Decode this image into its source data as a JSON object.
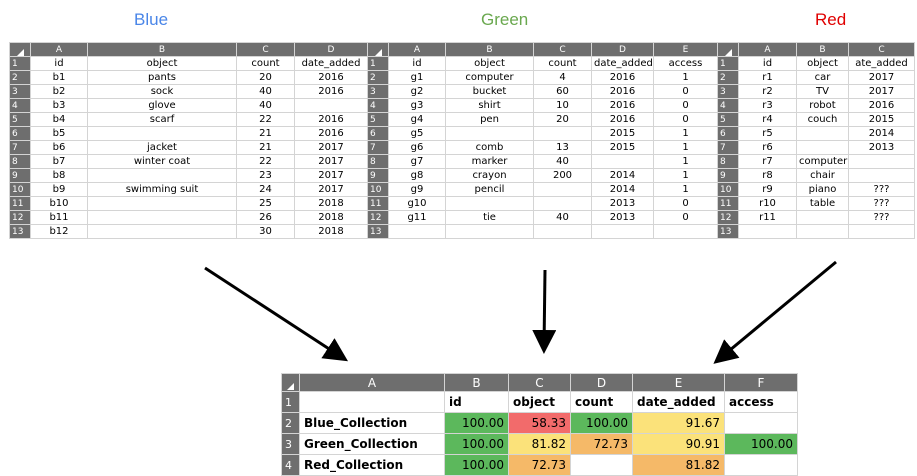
{
  "titles": {
    "blue": "Blue",
    "green": "Green",
    "red": "Red"
  },
  "title_colors": {
    "blue": "#4a86e8",
    "green": "#6aa84f",
    "red": "#e00000"
  },
  "blue": {
    "cols": [
      "A",
      "B",
      "C",
      "D"
    ],
    "rows": [
      [
        "id",
        "object",
        "count",
        "date_added"
      ],
      [
        "b1",
        "pants",
        "20",
        "2016"
      ],
      [
        "b2",
        "sock",
        "40",
        "2016"
      ],
      [
        "b3",
        "glove",
        "40",
        ""
      ],
      [
        "b4",
        "scarf",
        "22",
        "2016"
      ],
      [
        "b5",
        "",
        "21",
        "2016"
      ],
      [
        "b6",
        "jacket",
        "21",
        "2017"
      ],
      [
        "b7",
        "winter coat",
        "22",
        "2017"
      ],
      [
        "b8",
        "",
        "23",
        "2017"
      ],
      [
        "b9",
        "swimming suit",
        "24",
        "2017"
      ],
      [
        "b10",
        "",
        "25",
        "2018"
      ],
      [
        "b11",
        "",
        "26",
        "2018"
      ],
      [
        "b12",
        "",
        "30",
        "2018"
      ]
    ]
  },
  "green": {
    "cols": [
      "A",
      "B",
      "C",
      "D",
      "E"
    ],
    "rows": [
      [
        "id",
        "object",
        "count",
        "date_added",
        "access"
      ],
      [
        "g1",
        "computer",
        "4",
        "2016",
        "1"
      ],
      [
        "g2",
        "bucket",
        "60",
        "2016",
        "0"
      ],
      [
        "g3",
        "shirt",
        "10",
        "2016",
        "0"
      ],
      [
        "g4",
        "pen",
        "20",
        "2016",
        "0"
      ],
      [
        "g5",
        "",
        "",
        "2015",
        "1"
      ],
      [
        "g6",
        "comb",
        "13",
        "2015",
        "1"
      ],
      [
        "g7",
        "marker",
        "40",
        "",
        "1"
      ],
      [
        "g8",
        "crayon",
        "200",
        "2014",
        "1"
      ],
      [
        "g9",
        "pencil",
        "",
        "2014",
        "1"
      ],
      [
        "g10",
        "",
        "",
        "2013",
        "0"
      ],
      [
        "g11",
        "tie",
        "40",
        "2013",
        "0"
      ],
      [
        "",
        "",
        "",
        "",
        ""
      ]
    ]
  },
  "red": {
    "cols": [
      "A",
      "B",
      "C"
    ],
    "rows": [
      [
        "id",
        "object",
        "ate_added"
      ],
      [
        "r1",
        "car",
        "2017"
      ],
      [
        "r2",
        "TV",
        "2017"
      ],
      [
        "r3",
        "robot",
        "2016"
      ],
      [
        "r4",
        "couch",
        "2015"
      ],
      [
        "r5",
        "",
        "2014"
      ],
      [
        "r6",
        "",
        "2013"
      ],
      [
        "r7",
        "computer",
        ""
      ],
      [
        "r8",
        "chair",
        ""
      ],
      [
        "r9",
        "piano",
        "???"
      ],
      [
        "r10",
        "table",
        "???"
      ],
      [
        "r11",
        "",
        "???"
      ],
      [
        "",
        "",
        ""
      ]
    ]
  },
  "result": {
    "cols": [
      "A",
      "B",
      "C",
      "D",
      "E",
      "F"
    ],
    "header": [
      "",
      "id",
      "object",
      "count",
      "date_added",
      "access"
    ],
    "rows": [
      {
        "label": "Blue_Collection",
        "values": [
          "100.00",
          "58.33",
          "100.00",
          "91.67",
          ""
        ],
        "colors": [
          "#5cb85c",
          "#f26b6b",
          "#5cb85c",
          "#fbe27a",
          ""
        ]
      },
      {
        "label": "Green_Collection",
        "values": [
          "100.00",
          "81.82",
          "72.73",
          "90.91",
          "100.00"
        ],
        "colors": [
          "#5cb85c",
          "#fbe27a",
          "#f5b968",
          "#fbe27a",
          "#5cb85c"
        ]
      },
      {
        "label": "Red_Collection",
        "values": [
          "100.00",
          "72.73",
          "",
          "81.82",
          ""
        ],
        "colors": [
          "#5cb85c",
          "#f5b968",
          "",
          "#f5b968",
          ""
        ]
      }
    ]
  }
}
